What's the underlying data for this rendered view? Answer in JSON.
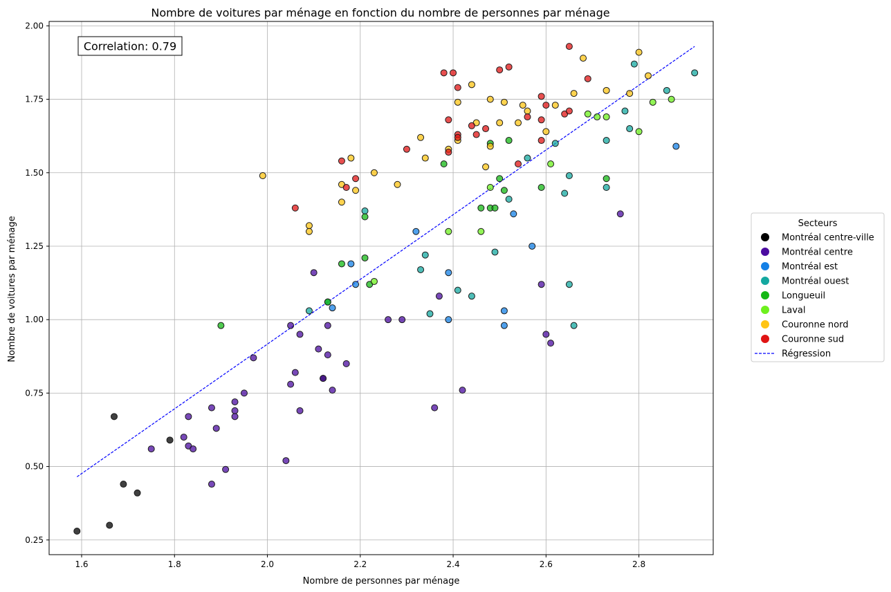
{
  "chart_data": {
    "type": "scatter",
    "title": "Nombre de voitures par ménage en fonction du nombre de personnes par ménage",
    "xlabel": "Nombre de personnes par ménage",
    "ylabel": "Nombre de voitures par ménage",
    "xlim": [
      1.53,
      2.96
    ],
    "ylim": [
      0.2,
      2.015
    ],
    "xticks": [
      1.6,
      1.8,
      2.0,
      2.2,
      2.4,
      2.6,
      2.8
    ],
    "xtick_labels": [
      "1.6",
      "1.8",
      "2.0",
      "2.2",
      "2.4",
      "2.6",
      "2.8"
    ],
    "yticks": [
      0.25,
      0.5,
      0.75,
      1.0,
      1.25,
      1.5,
      1.75,
      2.0
    ],
    "ytick_labels": [
      "0.25",
      "0.50",
      "0.75",
      "1.00",
      "1.25",
      "1.50",
      "1.75",
      "2.00"
    ],
    "grid": true,
    "annotation": "Correlation: 0.79",
    "legend": {
      "title": "Secteurs",
      "placement": "center-right outside"
    },
    "regression": {
      "name": "Régression",
      "color": "#0000ff",
      "x": [
        1.59,
        2.92
      ],
      "y": [
        0.465,
        1.93
      ]
    },
    "series": [
      {
        "name": "Montréal centre-ville",
        "color": "#000000",
        "points": [
          [
            1.59,
            0.28
          ],
          [
            1.66,
            0.3
          ],
          [
            1.67,
            0.67
          ],
          [
            1.69,
            0.44
          ],
          [
            1.72,
            0.41
          ],
          [
            1.79,
            0.59
          ],
          [
            2.12,
            0.8
          ]
        ]
      },
      {
        "name": "Montréal centre",
        "color": "#4b0ca0",
        "points": [
          [
            1.75,
            0.56
          ],
          [
            1.82,
            0.6
          ],
          [
            1.83,
            0.57
          ],
          [
            1.83,
            0.67
          ],
          [
            1.84,
            0.56
          ],
          [
            1.88,
            0.44
          ],
          [
            1.88,
            0.7
          ],
          [
            1.89,
            0.63
          ],
          [
            1.91,
            0.49
          ],
          [
            1.93,
            0.72
          ],
          [
            1.93,
            0.69
          ],
          [
            1.93,
            0.67
          ],
          [
            1.95,
            0.75
          ],
          [
            1.97,
            0.87
          ],
          [
            2.04,
            0.52
          ],
          [
            2.05,
            0.98
          ],
          [
            2.05,
            0.78
          ],
          [
            2.06,
            0.82
          ],
          [
            2.07,
            0.95
          ],
          [
            2.07,
            0.69
          ],
          [
            2.1,
            1.16
          ],
          [
            2.11,
            0.9
          ],
          [
            2.12,
            0.8
          ],
          [
            2.13,
            0.98
          ],
          [
            2.13,
            0.88
          ],
          [
            2.14,
            0.76
          ],
          [
            2.17,
            0.85
          ],
          [
            2.26,
            1.0
          ],
          [
            2.29,
            1.0
          ],
          [
            2.36,
            0.7
          ],
          [
            2.37,
            1.08
          ],
          [
            2.42,
            0.76
          ],
          [
            2.59,
            1.12
          ],
          [
            2.6,
            0.95
          ],
          [
            2.61,
            0.92
          ],
          [
            2.76,
            1.36
          ]
        ]
      },
      {
        "name": "Montréal est",
        "color": "#1480e6",
        "points": [
          [
            2.14,
            1.04
          ],
          [
            2.18,
            1.19
          ],
          [
            2.19,
            1.12
          ],
          [
            2.32,
            1.3
          ],
          [
            2.39,
            1.16
          ],
          [
            2.39,
            1.0
          ],
          [
            2.51,
            1.03
          ],
          [
            2.51,
            0.98
          ],
          [
            2.53,
            1.36
          ],
          [
            2.57,
            1.25
          ],
          [
            2.88,
            1.59
          ]
        ]
      },
      {
        "name": "Montréal ouest",
        "color": "#14a8a0",
        "points": [
          [
            2.09,
            1.03
          ],
          [
            2.13,
            1.06
          ],
          [
            2.21,
            1.37
          ],
          [
            2.33,
            1.17
          ],
          [
            2.34,
            1.22
          ],
          [
            2.35,
            1.02
          ],
          [
            2.41,
            1.1
          ],
          [
            2.44,
            1.08
          ],
          [
            2.49,
            1.23
          ],
          [
            2.52,
            1.41
          ],
          [
            2.56,
            1.55
          ],
          [
            2.62,
            1.6
          ],
          [
            2.64,
            1.43
          ],
          [
            2.65,
            1.49
          ],
          [
            2.65,
            1.12
          ],
          [
            2.66,
            0.98
          ],
          [
            2.73,
            1.61
          ],
          [
            2.73,
            1.45
          ],
          [
            2.77,
            1.71
          ],
          [
            2.78,
            1.65
          ],
          [
            2.79,
            1.87
          ],
          [
            2.86,
            1.78
          ],
          [
            2.92,
            1.84
          ]
        ]
      },
      {
        "name": "Longueuil",
        "color": "#14b814",
        "points": [
          [
            1.9,
            0.98
          ],
          [
            2.13,
            1.06
          ],
          [
            2.16,
            1.19
          ],
          [
            2.21,
            1.35
          ],
          [
            2.21,
            1.21
          ],
          [
            2.22,
            1.12
          ],
          [
            2.38,
            1.53
          ],
          [
            2.46,
            1.38
          ],
          [
            2.48,
            1.38
          ],
          [
            2.48,
            1.6
          ],
          [
            2.49,
            1.38
          ],
          [
            2.5,
            1.48
          ],
          [
            2.51,
            1.44
          ],
          [
            2.52,
            1.61
          ],
          [
            2.59,
            1.45
          ],
          [
            2.73,
            1.48
          ]
        ]
      },
      {
        "name": "Laval",
        "color": "#6ef01e",
        "points": [
          [
            2.23,
            1.13
          ],
          [
            2.39,
            1.3
          ],
          [
            2.46,
            1.3
          ],
          [
            2.48,
            1.45
          ],
          [
            2.61,
            1.53
          ],
          [
            2.69,
            1.7
          ],
          [
            2.71,
            1.69
          ],
          [
            2.73,
            1.69
          ],
          [
            2.8,
            1.64
          ],
          [
            2.83,
            1.74
          ],
          [
            2.87,
            1.75
          ]
        ]
      },
      {
        "name": "Couronne nord",
        "color": "#ffc414",
        "points": [
          [
            1.99,
            1.49
          ],
          [
            2.09,
            1.32
          ],
          [
            2.09,
            1.3
          ],
          [
            2.16,
            1.46
          ],
          [
            2.16,
            1.4
          ],
          [
            2.18,
            1.55
          ],
          [
            2.19,
            1.44
          ],
          [
            2.23,
            1.5
          ],
          [
            2.28,
            1.46
          ],
          [
            2.33,
            1.62
          ],
          [
            2.34,
            1.55
          ],
          [
            2.39,
            1.58
          ],
          [
            2.41,
            1.74
          ],
          [
            2.41,
            1.61
          ],
          [
            2.44,
            1.8
          ],
          [
            2.45,
            1.67
          ],
          [
            2.47,
            1.52
          ],
          [
            2.48,
            1.59
          ],
          [
            2.48,
            1.75
          ],
          [
            2.5,
            1.67
          ],
          [
            2.51,
            1.74
          ],
          [
            2.54,
            1.67
          ],
          [
            2.55,
            1.73
          ],
          [
            2.56,
            1.71
          ],
          [
            2.6,
            1.64
          ],
          [
            2.62,
            1.73
          ],
          [
            2.66,
            1.77
          ],
          [
            2.68,
            1.89
          ],
          [
            2.73,
            1.78
          ],
          [
            2.78,
            1.77
          ],
          [
            2.8,
            1.91
          ],
          [
            2.82,
            1.83
          ]
        ]
      },
      {
        "name": "Couronne sud",
        "color": "#e01414",
        "points": [
          [
            2.06,
            1.38
          ],
          [
            2.16,
            1.54
          ],
          [
            2.17,
            1.45
          ],
          [
            2.19,
            1.48
          ],
          [
            2.3,
            1.58
          ],
          [
            2.38,
            1.84
          ],
          [
            2.39,
            1.68
          ],
          [
            2.39,
            1.57
          ],
          [
            2.4,
            1.84
          ],
          [
            2.41,
            1.79
          ],
          [
            2.41,
            1.63
          ],
          [
            2.41,
            1.62
          ],
          [
            2.44,
            1.66
          ],
          [
            2.45,
            1.63
          ],
          [
            2.47,
            1.65
          ],
          [
            2.5,
            1.85
          ],
          [
            2.52,
            1.86
          ],
          [
            2.54,
            1.53
          ],
          [
            2.56,
            1.69
          ],
          [
            2.59,
            1.76
          ],
          [
            2.59,
            1.68
          ],
          [
            2.59,
            1.61
          ],
          [
            2.6,
            1.73
          ],
          [
            2.64,
            1.7
          ],
          [
            2.65,
            1.71
          ],
          [
            2.65,
            1.93
          ],
          [
            2.69,
            1.82
          ]
        ]
      }
    ]
  }
}
